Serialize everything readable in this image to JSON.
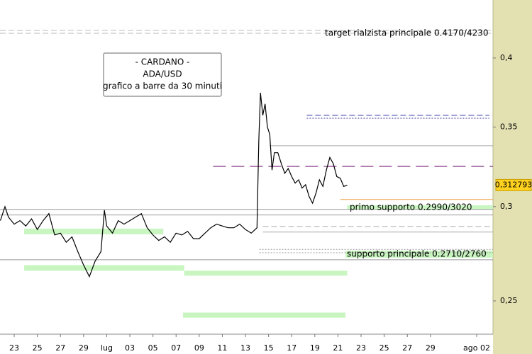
{
  "chart_data": {
    "type": "line",
    "log_scale": true,
    "xlim": [
      -1.23,
      41.41
    ],
    "ylim": [
      0.2344,
      0.4475
    ],
    "yticks": [
      {
        "value": 0.25,
        "label": "0,25"
      },
      {
        "value": 0.3,
        "label": "0,3"
      },
      {
        "value": 0.35,
        "label": "0,35"
      },
      {
        "value": 0.4,
        "label": "0,4"
      }
    ],
    "xticks": [
      {
        "value": 0,
        "label": "23"
      },
      {
        "value": 2,
        "label": "25"
      },
      {
        "value": 4,
        "label": "27"
      },
      {
        "value": 6,
        "label": "29"
      },
      {
        "value": 8,
        "label": "lug"
      },
      {
        "value": 10,
        "label": "03"
      },
      {
        "value": 12,
        "label": "05"
      },
      {
        "value": 14,
        "label": "07"
      },
      {
        "value": 16,
        "label": "09"
      },
      {
        "value": 18,
        "label": "11"
      },
      {
        "value": 20,
        "label": "13"
      },
      {
        "value": 22,
        "label": "15"
      },
      {
        "value": 24,
        "label": "17"
      },
      {
        "value": 26,
        "label": "19"
      },
      {
        "value": 28,
        "label": "21"
      },
      {
        "value": 30,
        "label": "23"
      },
      {
        "value": 32,
        "label": "25"
      },
      {
        "value": 34,
        "label": "27"
      },
      {
        "value": 36,
        "label": "29"
      },
      {
        "value": 40,
        "label": "ago 02"
      }
    ],
    "info_box": [
      "- CARDANO -",
      "ADA/USD",
      "grafico a barre da 30 minuti"
    ],
    "last_price": {
      "value": 0.312793,
      "label": "0,312793"
    },
    "series": [
      {
        "name": "ADA/USD",
        "color": "#000000",
        "x": [
          -1.2,
          -0.8,
          -0.5,
          0,
          0.5,
          1,
          1.5,
          2,
          2.5,
          3,
          3.5,
          4,
          4.5,
          5,
          5.5,
          6,
          6.5,
          7,
          7.5,
          7.8,
          8,
          8.5,
          9,
          9.5,
          10,
          10.5,
          11,
          11.5,
          12,
          12.5,
          13,
          13.5,
          14,
          14.5,
          15,
          15.5,
          16,
          16.5,
          17,
          17.5,
          18,
          18.5,
          19,
          19.5,
          20,
          20.5,
          21,
          21.15,
          21.3,
          21.5,
          21.7,
          21.9,
          22.1,
          22.3,
          22.5,
          22.8,
          23.1,
          23.4,
          23.7,
          24,
          24.3,
          24.6,
          24.9,
          25.2,
          25.5,
          25.8,
          26.1,
          26.4,
          26.7,
          27,
          27.3,
          27.6,
          27.9,
          28.2,
          28.5,
          28.8
        ],
        "values": [
          0.292,
          0.3,
          0.294,
          0.29,
          0.292,
          0.289,
          0.293,
          0.287,
          0.292,
          0.296,
          0.284,
          0.285,
          0.28,
          0.283,
          0.275,
          0.268,
          0.262,
          0.27,
          0.275,
          0.298,
          0.289,
          0.285,
          0.292,
          0.29,
          0.292,
          0.294,
          0.296,
          0.288,
          0.284,
          0.281,
          0.283,
          0.28,
          0.285,
          0.284,
          0.286,
          0.282,
          0.282,
          0.285,
          0.288,
          0.29,
          0.289,
          0.288,
          0.288,
          0.29,
          0.287,
          0.285,
          0.288,
          0.34,
          0.374,
          0.358,
          0.366,
          0.35,
          0.345,
          0.322,
          0.333,
          0.333,
          0.326,
          0.32,
          0.323,
          0.318,
          0.314,
          0.316,
          0.311,
          0.313,
          0.306,
          0.302,
          0.308,
          0.316,
          0.312,
          0.322,
          0.33,
          0.326,
          0.318,
          0.317,
          0.312,
          0.3128
        ]
      }
    ],
    "levels": [
      {
        "value": 0.422,
        "x": [
          -1.23,
          41.41
        ],
        "style": "dashed",
        "color": "#bbbbbb"
      },
      {
        "value": 0.4196,
        "x": [
          -1.23,
          41.41
        ],
        "style": "dashed",
        "color": "#bbbbbb"
      },
      {
        "value": 0.358,
        "x": [
          25.3,
          41.1
        ],
        "style": "dashed",
        "color": "#3333aa"
      },
      {
        "value": 0.356,
        "x": [
          25.3,
          41.1
        ],
        "style": "dotted",
        "color": "#3333aa"
      },
      {
        "value": 0.3375,
        "x": [
          22.1,
          41.41
        ],
        "style": "solid",
        "color": "#aaaaaa"
      },
      {
        "value": 0.3243,
        "x": [
          17.2,
          41.41
        ],
        "style": "longdash",
        "color": "#660066"
      },
      {
        "value": 0.3042,
        "x": [
          28.2,
          41.41
        ],
        "style": "solid",
        "color": "#f0a040"
      },
      {
        "value": 0.2984,
        "x": [
          -1.23,
          41.41
        ],
        "style": "solid",
        "color": "#999999"
      },
      {
        "value": 0.2952,
        "x": [
          -1.23,
          41.41
        ],
        "style": "solid",
        "color": "#999999"
      },
      {
        "value": 0.2887,
        "x": [
          21.5,
          41.41
        ],
        "style": "dashed",
        "color": "#aaaaaa"
      },
      {
        "value": 0.2856,
        "x": [
          21.5,
          41.41
        ],
        "style": "solid",
        "color": "#aaaaaa"
      },
      {
        "value": 0.2762,
        "x": [
          21.2,
          41.41
        ],
        "style": "dotted",
        "color": "#999999"
      },
      {
        "value": 0.2744,
        "x": [
          21.2,
          41.41
        ],
        "style": "dotted",
        "color": "#999999"
      },
      {
        "value": 0.2707,
        "x": [
          -1.23,
          41.41
        ],
        "style": "solid",
        "color": "#999999"
      }
    ],
    "zones": [
      {
        "range": [
          0.2984,
          0.3008
        ],
        "x": [
          28.8,
          41.41
        ],
        "color": "#c8f5c0",
        "label": "primo supporto 0.2990/3020"
      },
      {
        "range": [
          0.2718,
          0.2755
        ],
        "x": [
          28.65,
          41.41
        ],
        "color": "#c8f5c0",
        "label": "supporto principale 0.2710/2760"
      },
      {
        "range": [
          0.2844,
          0.2875
        ],
        "x": [
          0.86,
          12.9
        ],
        "color": "#c8f5c0"
      },
      {
        "range": [
          0.265,
          0.2679
        ],
        "x": [
          0.86,
          14.7
        ],
        "color": "#c8f5c0"
      },
      {
        "range": [
          0.2625,
          0.265
        ],
        "x": [
          14.7,
          28.8
        ],
        "color": "#c8f5c0"
      },
      {
        "range": [
          0.242,
          0.2444
        ],
        "x": [
          14.6,
          28.65
        ],
        "color": "#c8f5c0"
      }
    ],
    "target_label": "target rialzista principale 0.4170/4230"
  }
}
